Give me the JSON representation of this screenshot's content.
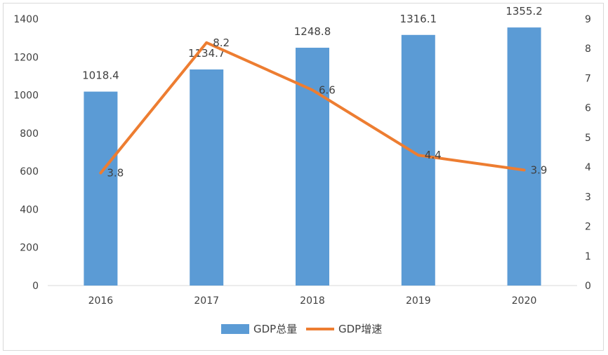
{
  "chart_data": {
    "type": "bar+line",
    "categories": [
      "2016",
      "2017",
      "2018",
      "2019",
      "2020"
    ],
    "series": [
      {
        "name": "GDP总量",
        "type": "bar",
        "axis": "left",
        "values": [
          1018.4,
          1134.7,
          1248.8,
          1316.1,
          1355.2
        ],
        "color": "#5b9bd5"
      },
      {
        "name": "GDP增速",
        "type": "line",
        "axis": "right",
        "values": [
          3.8,
          8.2,
          6.6,
          4.4,
          3.9
        ],
        "color": "#ed7d31"
      }
    ],
    "y_left": {
      "min": 0,
      "max": 1400,
      "step": 200,
      "ticks": [
        "0",
        "200",
        "400",
        "600",
        "800",
        "1000",
        "1200",
        "1400"
      ]
    },
    "y_right": {
      "min": 0,
      "max": 9,
      "step": 1,
      "ticks": [
        "0",
        "1",
        "2",
        "3",
        "4",
        "5",
        "6",
        "7",
        "8",
        "9"
      ]
    },
    "bar_labels": [
      "1018.4",
      "1134.7",
      "1248.8",
      "1316.1",
      "1355.2"
    ],
    "line_labels": [
      "3.8",
      "8.2",
      "6.6",
      "4.4",
      "3.9"
    ],
    "legend": {
      "position": "bottom",
      "items": [
        "GDP总量",
        "GDP增速"
      ]
    },
    "grid": false
  }
}
